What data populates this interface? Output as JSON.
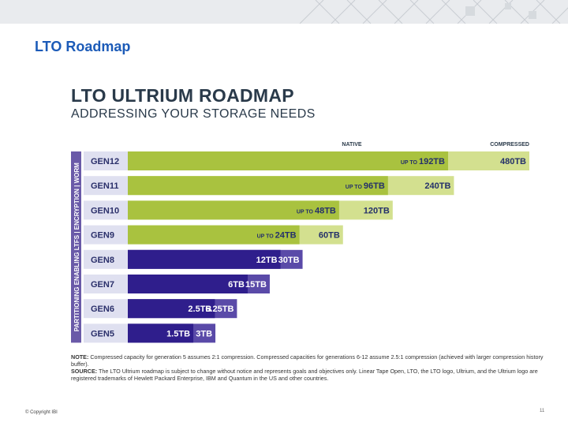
{
  "slide": {
    "title": "LTO Roadmap",
    "footer_left": "© Copyright IBI",
    "page_number": "11"
  },
  "chart_data": {
    "type": "bar",
    "title": "LTO ULTRIUM ROADMAP",
    "subtitle": "ADDRESSING YOUR STORAGE NEEDS",
    "side_label": "PARTITIONING ENABLING LTFS | ENCRYPTION | WORM",
    "legend": {
      "native": "NATIVE",
      "compressed": "COMPRESSED",
      "placement": "top-right"
    },
    "categories": [
      "GEN12",
      "GEN11",
      "GEN10",
      "GEN9",
      "GEN8",
      "GEN7",
      "GEN6",
      "GEN5"
    ],
    "series": [
      {
        "name": "NATIVE",
        "values": [
          192,
          96,
          48,
          24,
          12,
          6,
          2.5,
          1.5
        ],
        "labels": [
          "UP TO|192TB",
          "UP TO|96TB",
          "UP TO|48TB",
          "UP TO|24TB",
          "|12TB",
          "|6TB",
          "|2.5TB",
          "|1.5TB"
        ]
      },
      {
        "name": "COMPRESSED",
        "values": [
          480,
          240,
          120,
          60,
          30,
          15,
          6.25,
          3
        ],
        "labels": [
          "480TB",
          "240TB",
          "120TB",
          "60TB",
          "30TB",
          "15TB",
          "6.25TB",
          "3TB"
        ]
      }
    ],
    "colors": {
      "future_native": "#a9c23f",
      "future_compressed": "#d3e08f",
      "current_native": "#2f1e8c",
      "current_compressed": "#5a4aa8",
      "gen_label_bg": "#dfe0f0",
      "gen_label_text": "#2a2f6a",
      "side_bar": "#6a5aa8"
    },
    "scale": "non-linear",
    "grid": false
  },
  "note": {
    "note_label": "NOTE:",
    "note_text": "Compressed capacity for generation 5 assumes 2:1 compression. Compressed capacities for generations 6-12 assume 2.5:1 compression (achieved with larger compression history buffer).",
    "source_label": "SOURCE:",
    "source_text": "The LTO Ultrium roadmap is subject to change without notice and represents goals and objectives only. Linear Tape Open, LTO, the LTO logo, Ultrium, and the Ultrium logo are registered trademarks of Hewlett Packard Enterprise, IBM and Quantum in the US and other countries."
  }
}
